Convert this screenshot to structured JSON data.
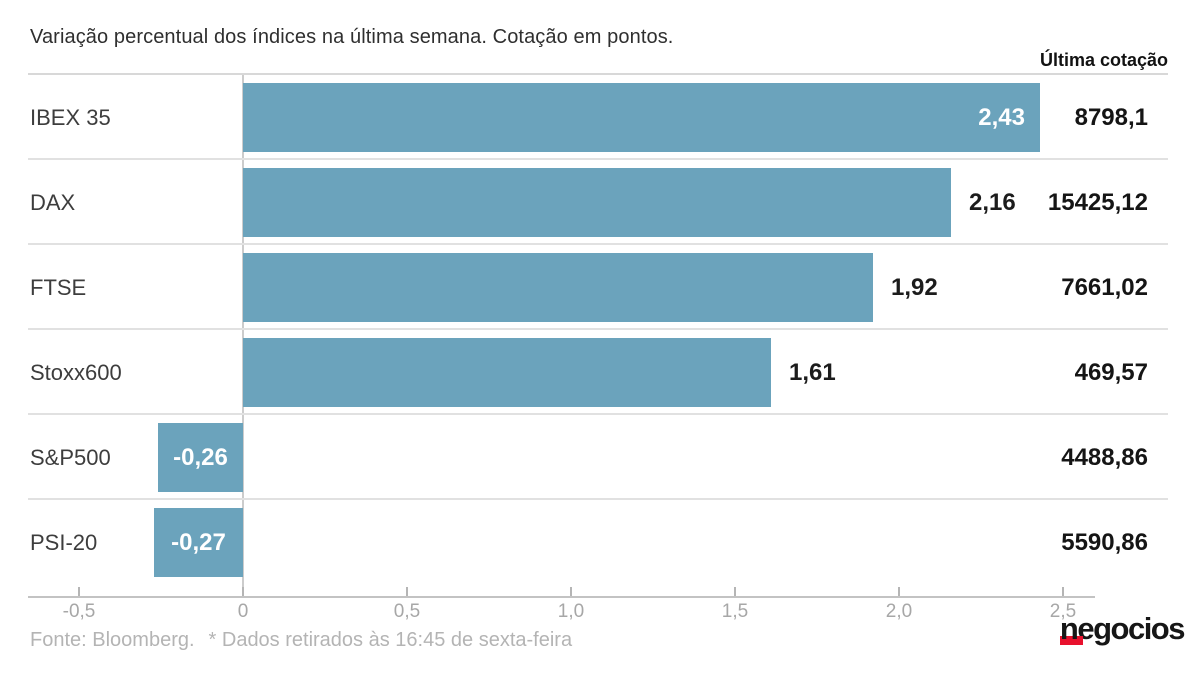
{
  "header": {
    "title": "Variação percentual dos índices na última semana. Cotação em pontos.",
    "last_quote_label": "Última cotação"
  },
  "chart_data": {
    "type": "bar",
    "orientation": "horizontal",
    "title": "Variação percentual dos índices na última semana. Cotação em pontos.",
    "categories": [
      "IBEX 35",
      "DAX",
      "FTSE",
      "Stoxx600",
      "S&P500",
      "PSI-20"
    ],
    "values": [
      2.43,
      2.16,
      1.92,
      1.61,
      -0.26,
      -0.27
    ],
    "value_labels": [
      "2,43",
      "2,16",
      "1,92",
      "1,61",
      "-0,26",
      "-0,27"
    ],
    "value_label_placement": [
      "inside",
      "outside",
      "outside",
      "outside",
      "inside",
      "inside"
    ],
    "quotes_column_header": "Última cotação",
    "quotes": [
      "8798,1",
      "15425,12",
      "7661,02",
      "469,57",
      "4488,86",
      "5590,86"
    ],
    "x_ticks": [
      -0.5,
      0,
      0.5,
      1.0,
      1.5,
      2.0,
      2.5
    ],
    "x_tick_labels": [
      "-0,5",
      "0",
      "0,5",
      "1,0",
      "1,5",
      "2,0",
      "2,5"
    ],
    "xlim": [
      -0.655,
      2.6
    ],
    "grid": false,
    "legend": "none",
    "bar_color": "#6ba3bc",
    "xlabel": "",
    "ylabel": ""
  },
  "footer": {
    "source": "Fonte: Bloomberg.",
    "note": "* Dados retirados às 16:45 de sexta-feira"
  },
  "logo": {
    "first_letter": "n",
    "rest": "egocios",
    "accent_color": "#e8112d"
  }
}
